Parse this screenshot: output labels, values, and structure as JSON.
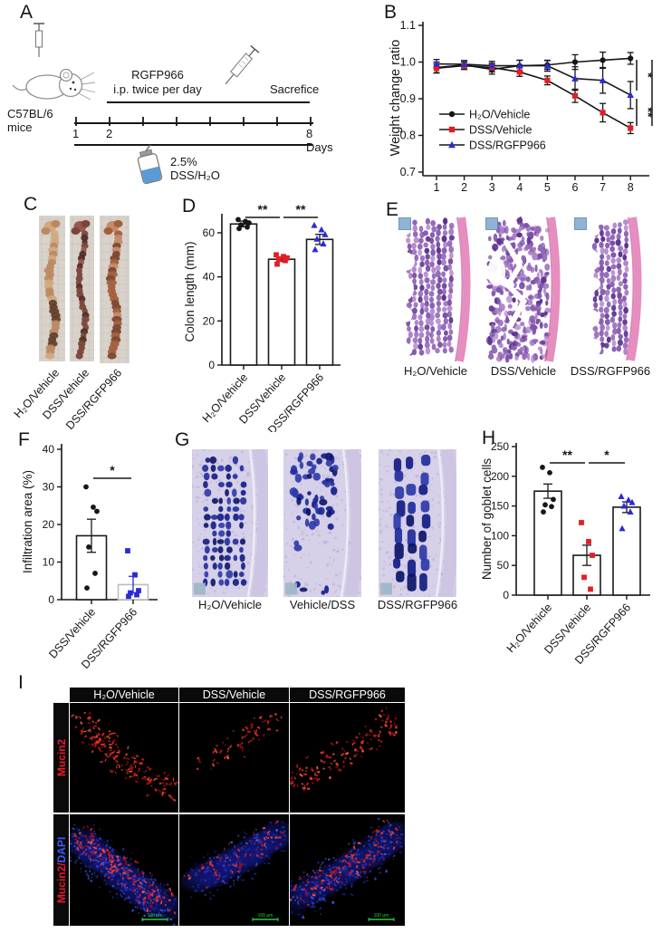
{
  "colors": {
    "black": "#161616",
    "series_red": "#e31e24",
    "series_blue": "#2b2bd5",
    "fluor_red": "#d91d1d",
    "fluor_blue": "#2f3fe0",
    "scalebar_green": "#2ecc40",
    "he_pink": "#e58ebf",
    "he_purple": "#7a4fa8",
    "alcian_blue": "#1f2b9c",
    "header_bg": "#0a0a0a"
  },
  "panels": {
    "A": {
      "label": "A",
      "mouse_strain": "C57BL/6 mice",
      "drug": "RGFP966",
      "dosing": "i.p. twice per day",
      "endpoint": "Sacrefice",
      "day_start": "1",
      "day_two": "2",
      "day_end": "8 Days",
      "treatment": "2.5% DSS/H₂O",
      "icons": [
        "syringe-icon",
        "mouse-icon",
        "water-bottle-icon"
      ]
    },
    "B": {
      "label": "B"
    },
    "C": {
      "label": "C",
      "image_labels": [
        "H₂O/Vehicle",
        "DSS/Vehicle",
        "DSS/RGFP966"
      ]
    },
    "D": {
      "label": "D"
    },
    "E": {
      "label": "E",
      "image_labels": [
        "H₂O/Vehicle",
        "DSS/Vehicle",
        "DSS/RGFP966"
      ]
    },
    "F": {
      "label": "F"
    },
    "G": {
      "label": "G",
      "image_labels": [
        "H₂O/Vehicle",
        "Vehicle/DSS",
        "DSS/RGFP966"
      ]
    },
    "H": {
      "label": "H"
    },
    "I": {
      "label": "I",
      "column_labels": [
        "H₂O/Vehicle",
        "DSS/Vehicle",
        "DSS/RGFP966"
      ],
      "row_labels": [
        {
          "segments": [
            {
              "text": "Mucin2",
              "color": "#e8192c"
            }
          ]
        },
        {
          "segments": [
            {
              "text": "Mucin2/",
              "color": "#e8192c"
            },
            {
              "text": "DAPI",
              "color": "#3a5bff"
            }
          ]
        }
      ],
      "scale_bar": "100 μm"
    }
  },
  "chart_data": [
    {
      "id": "weight_change",
      "type": "line",
      "title": "",
      "xlabel": "",
      "ylabel": "Weight change ratio",
      "x": [
        1,
        2,
        3,
        4,
        5,
        6,
        7,
        8
      ],
      "xticks": [
        1,
        2,
        3,
        4,
        5,
        6,
        7,
        8
      ],
      "ylim": [
        0.7,
        1.1
      ],
      "yticks": [
        0.7,
        0.8,
        0.9,
        1.0,
        1.1
      ],
      "legend_position": "lower-left",
      "series": [
        {
          "name": "H₂O/Vehicle",
          "color": "#161616",
          "marker": "circle",
          "values": [
            0.985,
            0.992,
            0.98,
            0.99,
            0.992,
            1.0,
            1.005,
            1.01
          ],
          "errors": [
            0.015,
            0.012,
            0.013,
            0.015,
            0.012,
            0.02,
            0.022,
            0.016
          ]
        },
        {
          "name": "DSS/Vehicle",
          "color": "#e31e24",
          "marker": "square",
          "values": [
            0.983,
            0.99,
            0.985,
            0.973,
            0.95,
            0.908,
            0.862,
            0.82
          ],
          "errors": [
            0.012,
            0.01,
            0.012,
            0.012,
            0.012,
            0.018,
            0.025,
            0.015
          ]
        },
        {
          "name": "DSS/RGFP966",
          "color": "#2b2bd5",
          "marker": "triangle",
          "values": [
            0.995,
            0.994,
            0.99,
            0.99,
            0.99,
            0.955,
            0.95,
            0.91
          ],
          "errors": [
            0.012,
            0.01,
            0.012,
            0.015,
            0.015,
            0.032,
            0.035,
            0.037
          ]
        }
      ],
      "significance": [
        {
          "pair": [
            "H₂O/Vehicle",
            "DSS/RGFP966"
          ],
          "label": "*"
        },
        {
          "pair": [
            "DSS/RGFP966",
            "DSS/Vehicle"
          ],
          "label": "**"
        },
        {
          "pair": [
            "H₂O/Vehicle",
            "DSS/Vehicle"
          ],
          "label": "**"
        }
      ]
    },
    {
      "id": "colon_length",
      "type": "bar",
      "ylabel": "Colon length (mm)",
      "categories": [
        "H₂O/Vehicle",
        "DSS/Vehicle",
        "DSS/RGFP966"
      ],
      "values": [
        64,
        48,
        57
      ],
      "errors": [
        1.3,
        1.0,
        2.3
      ],
      "ylim": [
        0,
        70
      ],
      "yticks": [
        0,
        20,
        40,
        60
      ],
      "bar_outline_colors": [
        "#1a1a1a",
        "#1a1a1a",
        "#1a1a1a"
      ],
      "error_colors": [
        "#1a1a1a",
        "#1a1a1a",
        "#1a1a1a"
      ],
      "point_series": [
        {
          "marker": "circle",
          "color": "#161616",
          "values": [
            66,
            65.2,
            64.5,
            63.6,
            62.6,
            61.9
          ]
        },
        {
          "marker": "square",
          "color": "#e31e24",
          "values": [
            50,
            49.2,
            48.6,
            48.0,
            47.4,
            45.8
          ]
        },
        {
          "marker": "triangle",
          "color": "#2b2bd5",
          "values": [
            63.4,
            61.4,
            59.2,
            57.2,
            55.0,
            52.4
          ]
        }
      ],
      "significance": [
        {
          "between": [
            0,
            1
          ],
          "label": "**"
        },
        {
          "between": [
            1,
            2
          ],
          "label": "**"
        }
      ]
    },
    {
      "id": "infiltration_area",
      "type": "bar",
      "ylabel": "Infiltration area (%)",
      "categories": [
        "DSS/Vehicle",
        "DSS/RGFP966"
      ],
      "values": [
        17,
        4
      ],
      "errors": [
        4.4,
        2.2
      ],
      "ylim": [
        0,
        40
      ],
      "yticks": [
        0,
        10,
        20,
        30,
        40
      ],
      "bar_outline_colors": [
        "#1a1a1a",
        "#bdbdbd"
      ],
      "error_colors": [
        "#1a1a1a",
        "#2b2bd5"
      ],
      "point_series": [
        {
          "marker": "circle",
          "color": "#161616",
          "values": [
            30,
            24.6,
            23.5,
            14,
            7,
            3.1
          ]
        },
        {
          "marker": "square",
          "color": "#2b2bd5",
          "values": [
            13,
            6.6,
            2.4,
            1.8,
            1.3,
            0.9
          ]
        }
      ],
      "significance": [
        {
          "between": [
            0,
            1
          ],
          "label": "*"
        }
      ]
    },
    {
      "id": "goblet_cells",
      "type": "bar",
      "ylabel": "Number of goblet cells",
      "categories": [
        "H₂O/Vehicle",
        "DSS/Vehicle",
        "DSS/RGFP966"
      ],
      "values": [
        175,
        67,
        148
      ],
      "errors": [
        12,
        17,
        9
      ],
      "ylim": [
        0,
        250
      ],
      "yticks": [
        0,
        50,
        100,
        150,
        200,
        250
      ],
      "bar_outline_colors": [
        "#1a1a1a",
        "#1a1a1a",
        "#1a1a1a"
      ],
      "error_colors": [
        "#1a1a1a",
        "#1a1a1a",
        "#1a1a1a"
      ],
      "point_series": [
        {
          "marker": "circle",
          "color": "#161616",
          "values": [
            215,
            206,
            161,
            152,
            149,
            140
          ]
        },
        {
          "marker": "square",
          "color": "#e31e24",
          "values": [
            122,
            90,
            67,
            30,
            10
          ]
        },
        {
          "marker": "triangle",
          "color": "#2b2bd5",
          "values": [
            166,
            160,
            156,
            150,
            140,
            112
          ]
        }
      ],
      "significance": [
        {
          "between": [
            0,
            1
          ],
          "label": "**"
        },
        {
          "between": [
            1,
            2
          ],
          "label": "*"
        }
      ]
    }
  ]
}
